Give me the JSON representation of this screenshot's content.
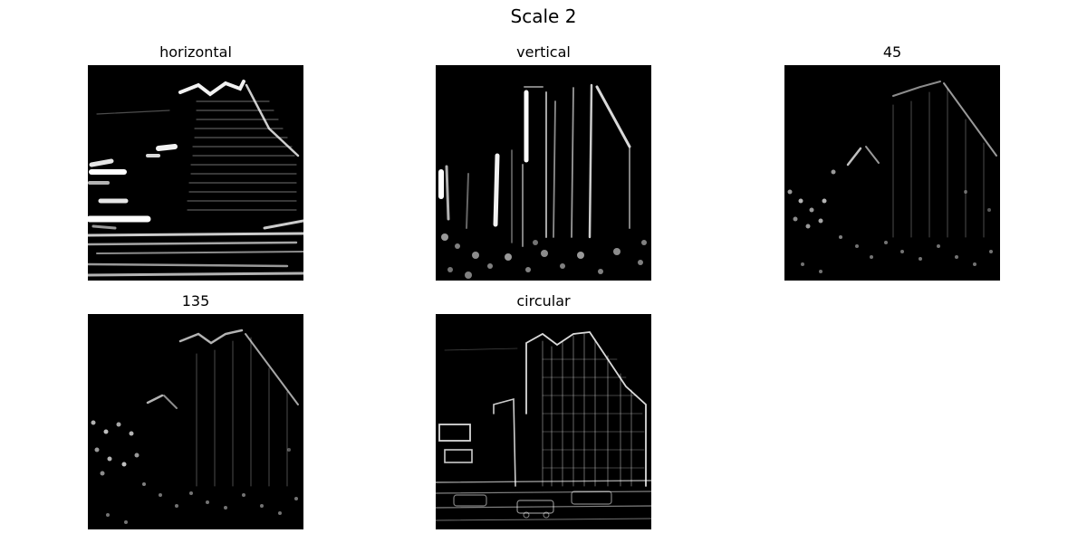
{
  "figure": {
    "title": "Scale 2"
  },
  "panels": [
    {
      "title": "horizontal"
    },
    {
      "title": "vertical"
    },
    {
      "title": "45"
    },
    {
      "title": "135"
    },
    {
      "title": "circular"
    }
  ],
  "colors": {
    "background": "#ffffff",
    "image_background": "#000000",
    "edge_highlight": "#ffffff"
  }
}
